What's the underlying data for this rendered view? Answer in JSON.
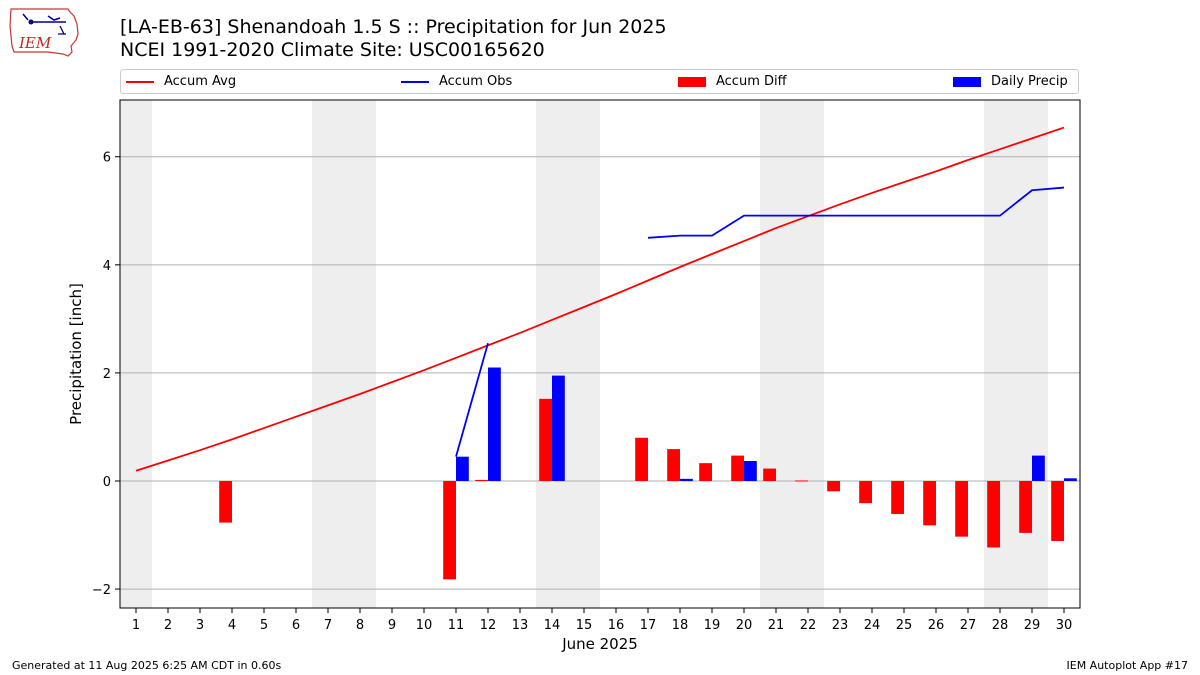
{
  "header": {
    "title_line_1": "[LA-EB-63] Shenandoah 1.5 S :: Precipitation for Jun 2025",
    "title_line_2": "NCEI 1991-2020 Climate Site: USC00165620"
  },
  "logo": {
    "text": "IEM",
    "icon": "iem-iowa-logo"
  },
  "footer": {
    "left": "Generated at 11 Aug 2025 6:25 AM CDT in 0.60s",
    "right": "IEM Autoplot App #17"
  },
  "legend": {
    "items": [
      {
        "label": "Accum Avg",
        "kind": "line",
        "color": "#ff0000"
      },
      {
        "label": "Accum Obs",
        "kind": "line",
        "color": "#0000ff"
      },
      {
        "label": "Accum Diff",
        "kind": "bar",
        "color": "#ff0000"
      },
      {
        "label": "Daily Precip",
        "kind": "bar",
        "color": "#0000ff"
      }
    ],
    "placement": "top, above plot"
  },
  "chart_data": {
    "type": "bar",
    "xlabel": "June 2025",
    "ylabel": "Precipitation [inch]",
    "x": [
      1,
      2,
      3,
      4,
      5,
      6,
      7,
      8,
      9,
      10,
      11,
      12,
      13,
      14,
      15,
      16,
      17,
      18,
      19,
      20,
      21,
      22,
      23,
      24,
      25,
      26,
      27,
      28,
      29,
      30
    ],
    "x_tick_labels": [
      "1",
      "2",
      "3",
      "4",
      "5",
      "6",
      "7",
      "8",
      "9",
      "10",
      "11",
      "12",
      "13",
      "14",
      "15",
      "16",
      "17",
      "18",
      "19",
      "20",
      "21",
      "22",
      "23",
      "24",
      "25",
      "26",
      "27",
      "28",
      "29",
      "30"
    ],
    "xlim": [
      0.5,
      30.5
    ],
    "ylim": [
      -2.35,
      7.05
    ],
    "y_ticks": [
      -2,
      0,
      2,
      4,
      6
    ],
    "grid": "horizontal",
    "weekend_shading": [
      [
        0.5,
        1.5
      ],
      [
        6.5,
        8.5
      ],
      [
        13.5,
        15.5
      ],
      [
        20.5,
        22.5
      ],
      [
        27.5,
        29.5
      ]
    ],
    "colors": {
      "avg": "#ff0000",
      "obs": "#0000ff",
      "diff": "#ff0000",
      "daily": "#0000ff",
      "weekend": "#eeeeee"
    },
    "series": [
      {
        "name": "Accum Avg",
        "type": "line",
        "values": [
          0.19,
          0.38,
          0.57,
          0.77,
          0.98,
          1.19,
          1.4,
          1.61,
          1.83,
          2.05,
          2.28,
          2.51,
          2.74,
          2.98,
          3.22,
          3.46,
          3.71,
          3.96,
          4.2,
          4.44,
          4.68,
          4.9,
          5.12,
          5.33,
          5.53,
          5.73,
          5.94,
          6.14,
          6.34,
          6.54
        ]
      },
      {
        "name": "Accum Obs",
        "type": "line",
        "values": [
          null,
          null,
          null,
          null,
          null,
          null,
          null,
          null,
          null,
          null,
          0.45,
          2.55,
          null,
          null,
          null,
          null,
          4.5,
          4.54,
          4.54,
          4.91,
          4.91,
          4.91,
          4.91,
          4.91,
          4.91,
          4.91,
          4.91,
          4.91,
          5.38,
          5.43
        ]
      },
      {
        "name": "Accum Diff",
        "type": "bar",
        "values": [
          0,
          0,
          0,
          -0.77,
          0,
          0,
          0,
          0,
          0,
          0,
          -1.82,
          0.02,
          0,
          1.52,
          0,
          0,
          0.8,
          0.59,
          0.33,
          0.47,
          0.23,
          0.01,
          -0.19,
          -0.41,
          -0.61,
          -0.82,
          -1.03,
          -1.23,
          -0.96,
          -1.11
        ]
      },
      {
        "name": "Daily Precip",
        "type": "bar",
        "values": [
          0,
          0,
          0,
          0,
          0,
          0,
          0,
          0,
          0,
          0,
          0.45,
          2.1,
          0,
          1.95,
          0,
          0,
          0,
          0.04,
          0,
          0.37,
          0,
          0,
          0,
          0,
          0,
          0,
          0,
          0,
          0.47,
          0.05
        ]
      }
    ]
  }
}
